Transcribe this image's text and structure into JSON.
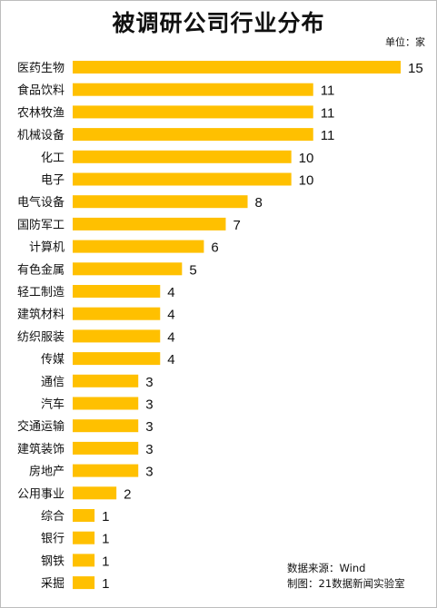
{
  "chart_data": {
    "type": "bar",
    "orientation": "horizontal",
    "title": "被调研公司行业分布",
    "unit": "单位：家",
    "categories": [
      "医药生物",
      "食品饮料",
      "农林牧渔",
      "机械设备",
      "化工",
      "电子",
      "电气设备",
      "国防军工",
      "计算机",
      "有色金属",
      "轻工制造",
      "建筑材料",
      "纺织服装",
      "传媒",
      "通信",
      "汽车",
      "交通运输",
      "建筑装饰",
      "房地产",
      "公用事业",
      "综合",
      "银行",
      "钢铁",
      "采掘"
    ],
    "values": [
      15,
      11,
      11,
      11,
      10,
      10,
      8,
      7,
      6,
      5,
      4,
      4,
      4,
      4,
      3,
      3,
      3,
      3,
      3,
      2,
      1,
      1,
      1,
      1
    ],
    "xlim": [
      0,
      15
    ],
    "grid": false,
    "legend": "none"
  },
  "colors": {
    "bar": "#FFC000"
  },
  "footer": {
    "source": "数据来源：Wind",
    "credit": "制图：21数据新闻实验室"
  }
}
